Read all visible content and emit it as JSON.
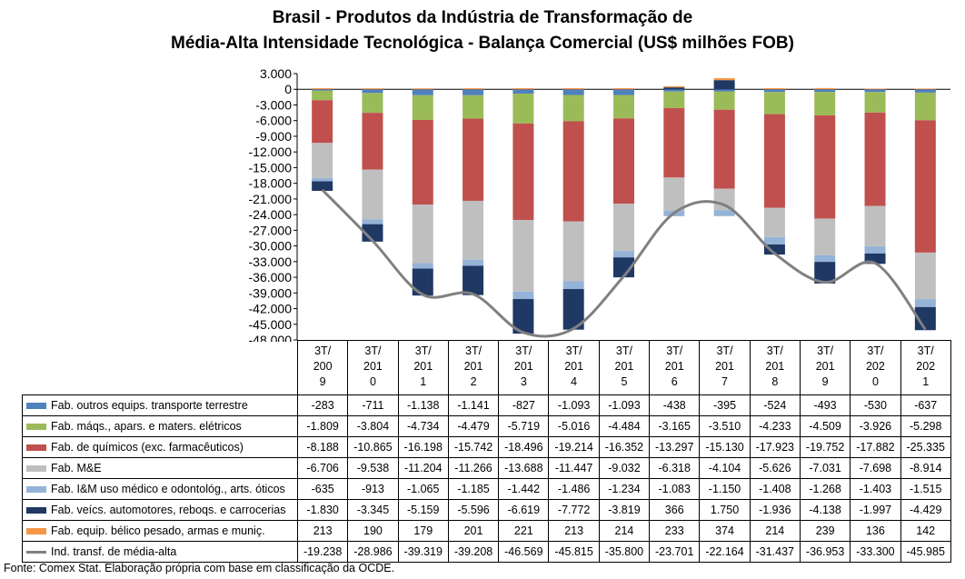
{
  "chart_data": {
    "type": "bar",
    "stacked": true,
    "title_line1": "Brasil - Produtos da Indústria de Transformação de",
    "title_line2": "Média-Alta Intensidade Tecnológica - Balança Comercial (US$ milhões FOB)",
    "categories": [
      [
        "3T/",
        "200",
        "9"
      ],
      [
        "3T/",
        "201",
        "0"
      ],
      [
        "3T/",
        "201",
        "1"
      ],
      [
        "3T/",
        "201",
        "2"
      ],
      [
        "3T/",
        "201",
        "3"
      ],
      [
        "3T/",
        "201",
        "4"
      ],
      [
        "3T/",
        "201",
        "5"
      ],
      [
        "3T/",
        "201",
        "6"
      ],
      [
        "3T/",
        "201",
        "7"
      ],
      [
        "3T/",
        "201",
        "8"
      ],
      [
        "3T/",
        "201",
        "9"
      ],
      [
        "3T/",
        "202",
        "0"
      ],
      [
        "3T/",
        "202",
        "1"
      ]
    ],
    "ylim": [
      -48000,
      3000
    ],
    "yticks": [
      "3.000",
      "0",
      "-3.000",
      "-6.000",
      "-9.000",
      "-12.000",
      "-15.000",
      "-18.000",
      "-21.000",
      "-24.000",
      "-27.000",
      "-30.000",
      "-33.000",
      "-36.000",
      "-39.000",
      "-42.000",
      "-45.000",
      "-48.000"
    ],
    "series": [
      {
        "name": "Fab. outros equips. transporte terrestre",
        "color": "#4f81bd",
        "values": [
          -283,
          -711,
          -1138,
          -1141,
          -827,
          -1093,
          -1093,
          -438,
          -395,
          -524,
          -493,
          -530,
          -637
        ],
        "labels": [
          "-283",
          "-711",
          "-1.138",
          "-1.141",
          "-827",
          "-1.093",
          "-1.093",
          "-438",
          "-395",
          "-524",
          "-493",
          "-530",
          "-637"
        ]
      },
      {
        "name": "Fab. máqs., apars. e maters. elétricos",
        "color": "#9bbb59",
        "values": [
          -1809,
          -3804,
          -4734,
          -4479,
          -5719,
          -5016,
          -4484,
          -3165,
          -3510,
          -4233,
          -4509,
          -3926,
          -5298
        ],
        "labels": [
          "-1.809",
          "-3.804",
          "-4.734",
          "-4.479",
          "-5.719",
          "-5.016",
          "-4.484",
          "-3.165",
          "-3.510",
          "-4.233",
          "-4.509",
          "-3.926",
          "-5.298"
        ]
      },
      {
        "name": "Fab. de químicos (exc. farmacêuticos)",
        "color": "#c0504d",
        "values": [
          -8188,
          -10865,
          -16198,
          -15742,
          -18496,
          -19214,
          -16352,
          -13297,
          -15130,
          -17923,
          -19752,
          -17882,
          -25335
        ],
        "labels": [
          "-8.188",
          "-10.865",
          "-16.198",
          "-15.742",
          "-18.496",
          "-19.214",
          "-16.352",
          "-13.297",
          "-15.130",
          "-17.923",
          "-19.752",
          "-17.882",
          "-25.335"
        ]
      },
      {
        "name": "Fab. M&E",
        "color": "#bfbfbf",
        "values": [
          -6706,
          -9538,
          -11204,
          -11266,
          -13688,
          -11447,
          -9032,
          -6318,
          -4104,
          -5626,
          -7031,
          -7698,
          -8914
        ],
        "labels": [
          "-6.706",
          "-9.538",
          "-11.204",
          "-11.266",
          "-13.688",
          "-11.447",
          "-9.032",
          "-6.318",
          "-4.104",
          "-5.626",
          "-7.031",
          "-7.698",
          "-8.914"
        ]
      },
      {
        "name": "Fab. I&M uso médico e odontológ., arts. óticos",
        "color": "#95b3d7",
        "values": [
          -635,
          -913,
          -1065,
          -1185,
          -1442,
          -1486,
          -1234,
          -1083,
          -1150,
          -1408,
          -1268,
          -1403,
          -1515
        ],
        "labels": [
          "-635",
          "-913",
          "-1.065",
          "-1.185",
          "-1.442",
          "-1.486",
          "-1.234",
          "-1.083",
          "-1.150",
          "-1.408",
          "-1.268",
          "-1.403",
          "-1.515"
        ]
      },
      {
        "name": "Fab. veícs. automotores, reboqs. e carrocerias",
        "color": "#1f3864",
        "values": [
          -1830,
          -3345,
          -5159,
          -5596,
          -6619,
          -7772,
          -3819,
          366,
          1750,
          -1936,
          -4138,
          -1997,
          -4429
        ],
        "labels": [
          "-1.830",
          "-3.345",
          "-5.159",
          "-5.596",
          "-6.619",
          "-7.772",
          "-3.819",
          "366",
          "1.750",
          "-1.936",
          "-4.138",
          "-1.997",
          "-4.429"
        ]
      },
      {
        "name": "Fab. equip. bélico pesado, armas e munições.",
        "display_name": "Fab. equip. bélico pesado, armas e muniç.",
        "color": "#f79646",
        "values": [
          213,
          190,
          179,
          201,
          221,
          213,
          214,
          233,
          374,
          214,
          239,
          136,
          142
        ],
        "labels": [
          "213",
          "190",
          "179",
          "201",
          "221",
          "213",
          "214",
          "233",
          "374",
          "214",
          "239",
          "136",
          "142"
        ]
      }
    ],
    "line_series": {
      "name": "Ind. transf. de média-alta",
      "color": "#808080",
      "values": [
        -19238,
        -28986,
        -39319,
        -39208,
        -46569,
        -45815,
        -35800,
        -23701,
        -22164,
        -31437,
        -36953,
        -33300,
        -45985
      ],
      "labels": [
        "-19.238",
        "-28.986",
        "-39.319",
        "-39.208",
        "-46.569",
        "-45.815",
        "-35.800",
        "-23.701",
        "-22.164",
        "-31.437",
        "-36.953",
        "-33.300",
        "-45.985"
      ]
    },
    "source": "Fonte: Comex Stat. Elaboração própria com base em classificação da OCDE."
  }
}
